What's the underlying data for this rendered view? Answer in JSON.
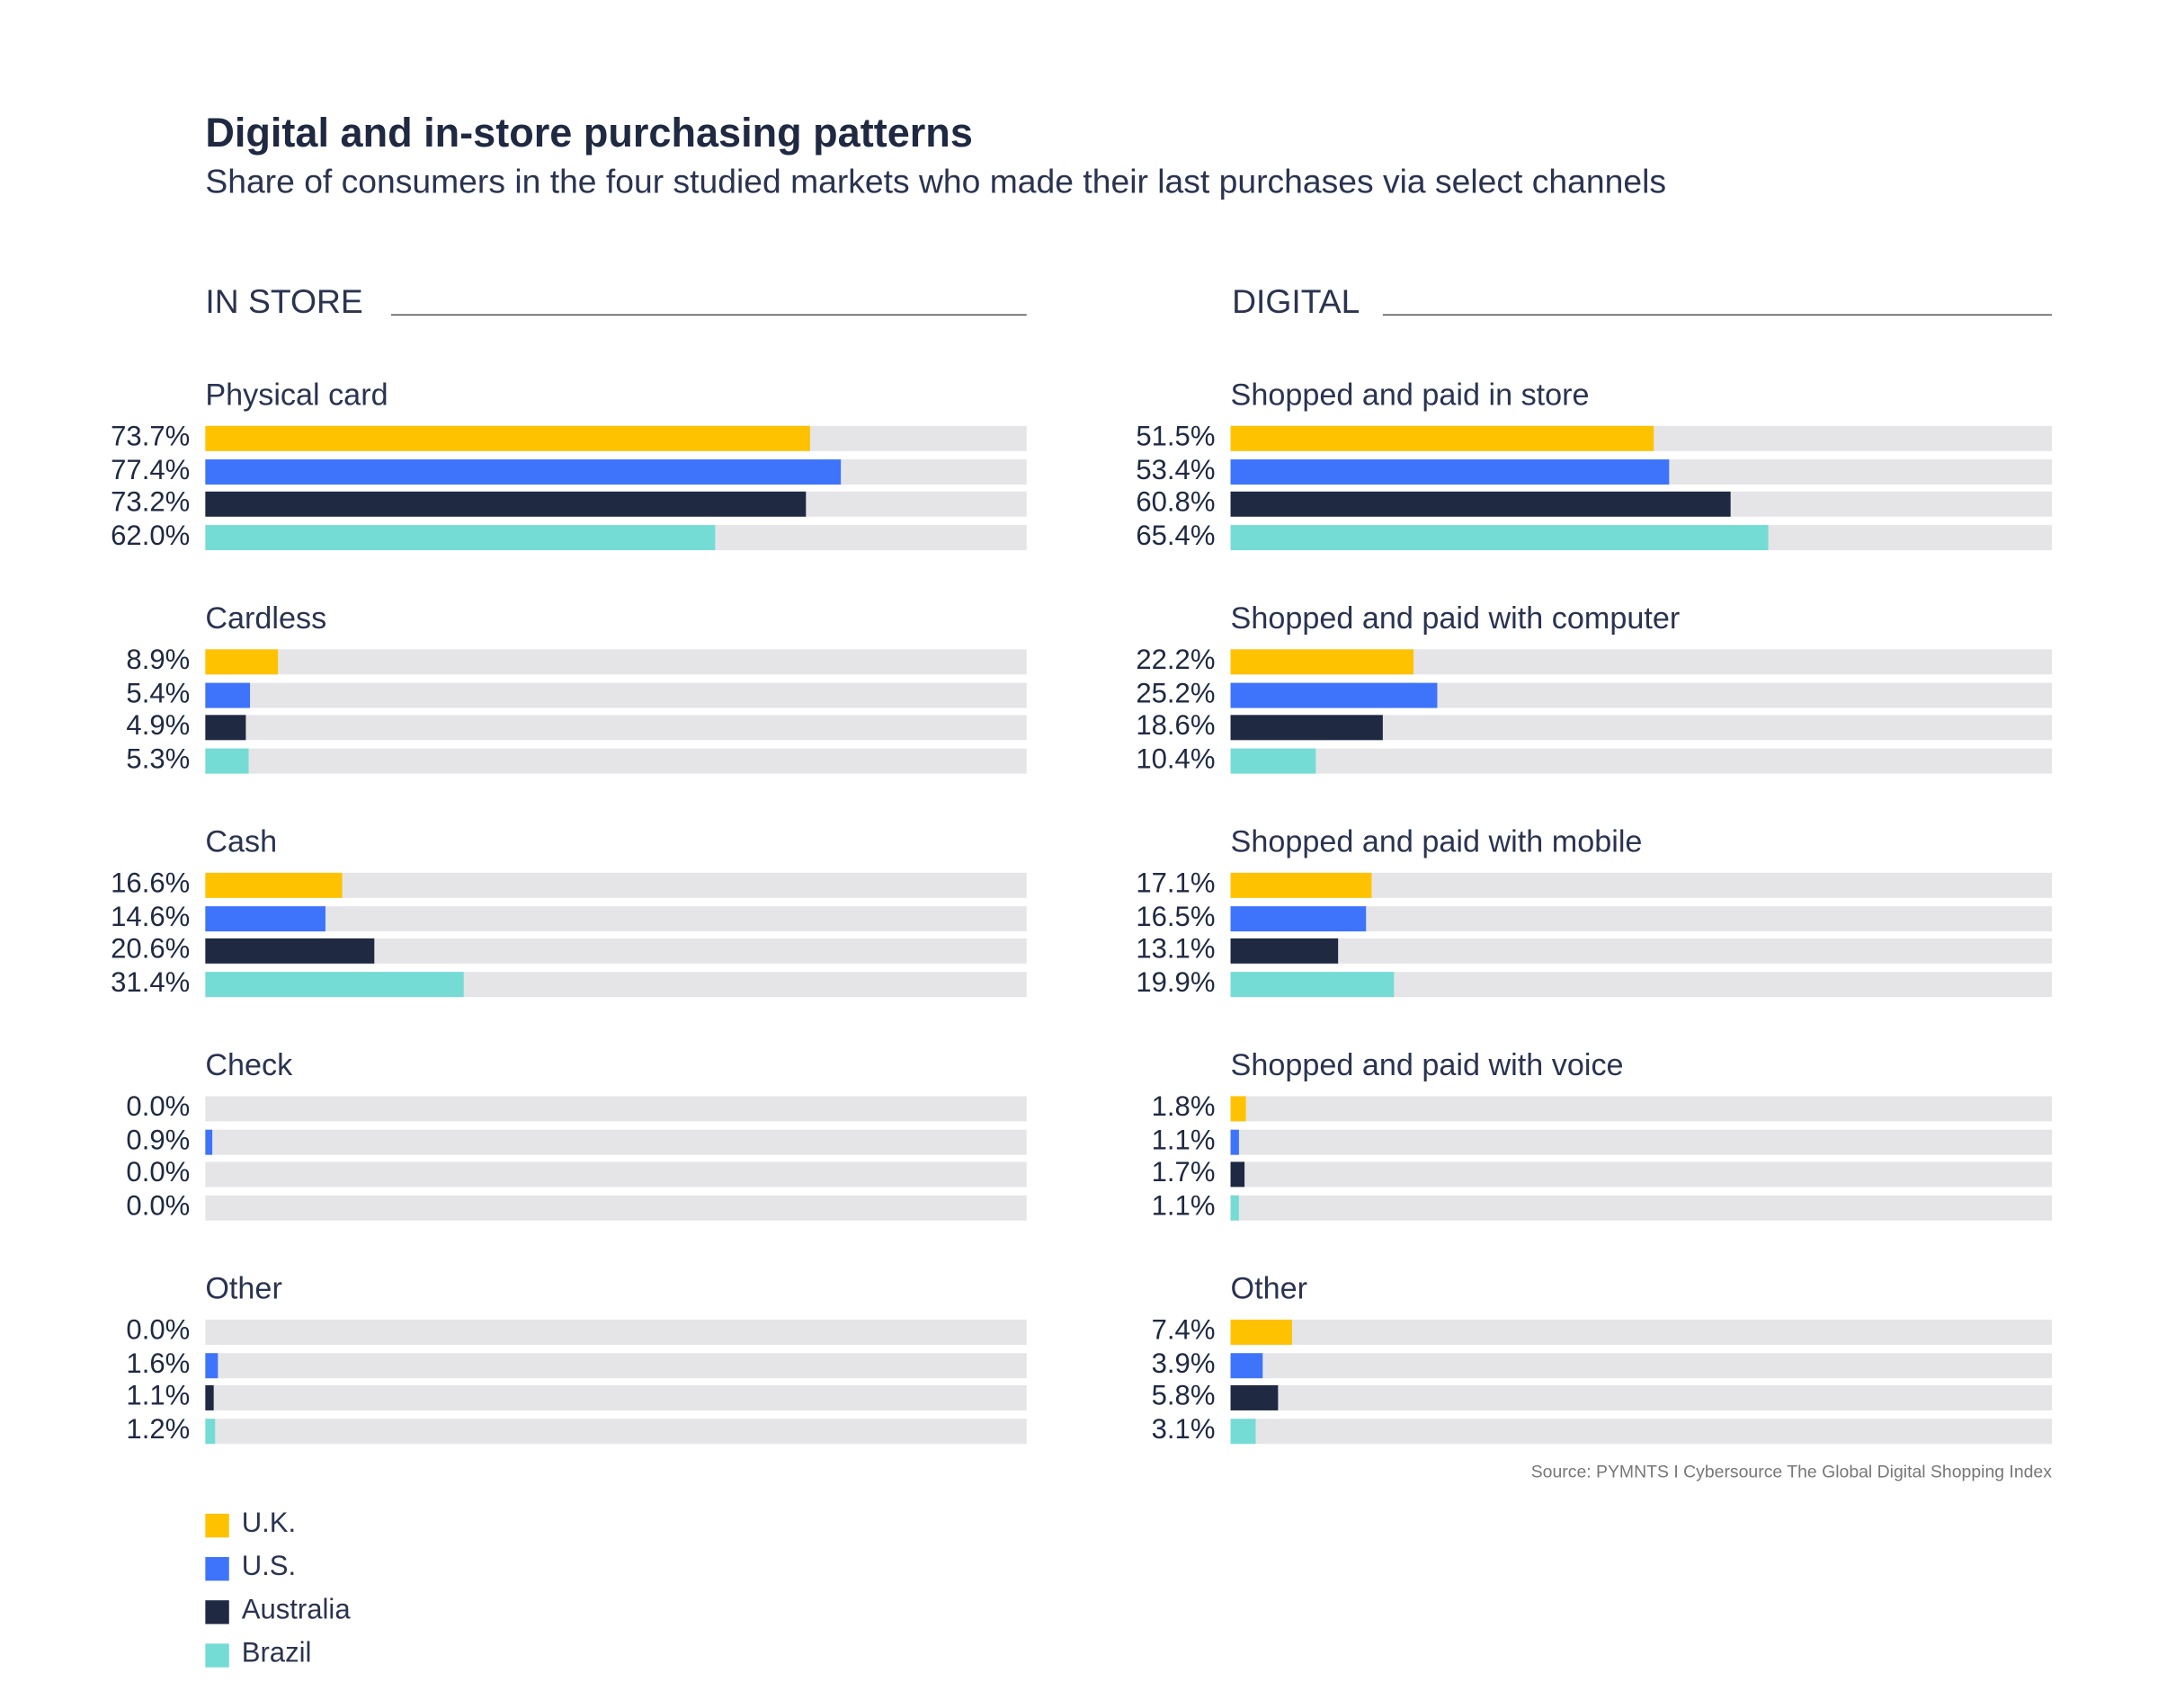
{
  "chart_data": {
    "type": "bar",
    "orientation": "horizontal",
    "title": "Digital and in-store purchasing patterns",
    "subtitle": "Share of consumers in the four studied markets who made their last purchases via select channels",
    "xlim": [
      0,
      100
    ],
    "unit": "%",
    "legend": {
      "placement": "bottom-left",
      "entries": [
        "U.K.",
        "U.S.",
        "Australia",
        "Brazil"
      ]
    },
    "series_colors": [
      "#FFC200",
      "#3D74FB",
      "#1F2942",
      "#74DCD5"
    ],
    "track_color": "#E5E5E8",
    "panels": [
      {
        "heading": "IN STORE",
        "groups": [
          {
            "label": "Physical card",
            "values": [
              73.7,
              77.4,
              73.2,
              62.0
            ],
            "labels": [
              "73.7%",
              "77.4%",
              "73.2%",
              "62.0%"
            ]
          },
          {
            "label": "Cardless",
            "values": [
              8.9,
              5.4,
              4.9,
              5.3
            ],
            "labels": [
              "8.9%",
              "5.4%",
              "4.9%",
              "5.3%"
            ]
          },
          {
            "label": "Cash",
            "values": [
              16.6,
              14.6,
              20.6,
              31.4
            ],
            "labels": [
              "16.6%",
              "14.6%",
              "20.6%",
              "31.4%"
            ]
          },
          {
            "label": "Check",
            "values": [
              0.0,
              0.9,
              0.0,
              0.0
            ],
            "labels": [
              "0.0%",
              "0.9%",
              "0.0%",
              "0.0%"
            ]
          },
          {
            "label": "Other",
            "values": [
              0.0,
              1.6,
              1.1,
              1.2
            ],
            "labels": [
              "0.0%",
              "1.6%",
              "1.1%",
              "1.2%"
            ]
          }
        ]
      },
      {
        "heading": "DIGITAL",
        "groups": [
          {
            "label": "Shopped and paid in store",
            "values": [
              51.5,
              53.4,
              60.8,
              65.4
            ],
            "labels": [
              "51.5%",
              "53.4%",
              "60.8%",
              "65.4%"
            ]
          },
          {
            "label": "Shopped and paid with computer",
            "values": [
              22.2,
              25.2,
              18.6,
              10.4
            ],
            "labels": [
              "22.2%",
              "25.2%",
              "18.6%",
              "10.4%"
            ]
          },
          {
            "label": "Shopped and paid with mobile",
            "values": [
              17.1,
              16.5,
              13.1,
              19.9
            ],
            "labels": [
              "17.1%",
              "16.5%",
              "13.1%",
              "19.9%"
            ]
          },
          {
            "label": "Shopped and paid with voice",
            "values": [
              1.8,
              1.1,
              1.7,
              1.1
            ],
            "labels": [
              "1.8%",
              "1.1%",
              "1.7%",
              "1.1%"
            ]
          },
          {
            "label": "Other",
            "values": [
              7.4,
              3.9,
              5.8,
              3.1
            ],
            "labels": [
              "7.4%",
              "3.9%",
              "5.8%",
              "3.1%"
            ]
          }
        ]
      }
    ],
    "source": "Source: PYMNTS I Cybersource The Global Digital Shopping Index"
  }
}
